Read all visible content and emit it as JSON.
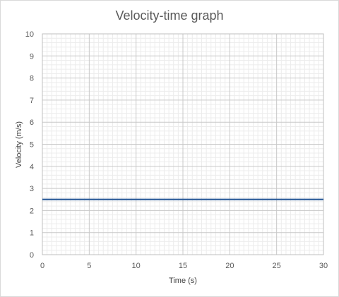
{
  "chart_data": {
    "type": "line",
    "title": "Velocity-time graph",
    "xlabel": "Time (s)",
    "ylabel": "Velocity (m/s)",
    "xlim": [
      0,
      30
    ],
    "ylim": [
      0,
      10
    ],
    "x_ticks": [
      "0",
      "5",
      "10",
      "15",
      "20",
      "25",
      "30"
    ],
    "y_ticks": [
      "0",
      "1",
      "2",
      "3",
      "4",
      "5",
      "6",
      "7",
      "8",
      "9",
      "10"
    ],
    "grid": true,
    "minor_grid": true,
    "legend": "none",
    "line_color": "#2e5d9a",
    "series": [
      {
        "x": [
          0,
          30
        ],
        "y": [
          2.5,
          2.5
        ]
      }
    ]
  }
}
